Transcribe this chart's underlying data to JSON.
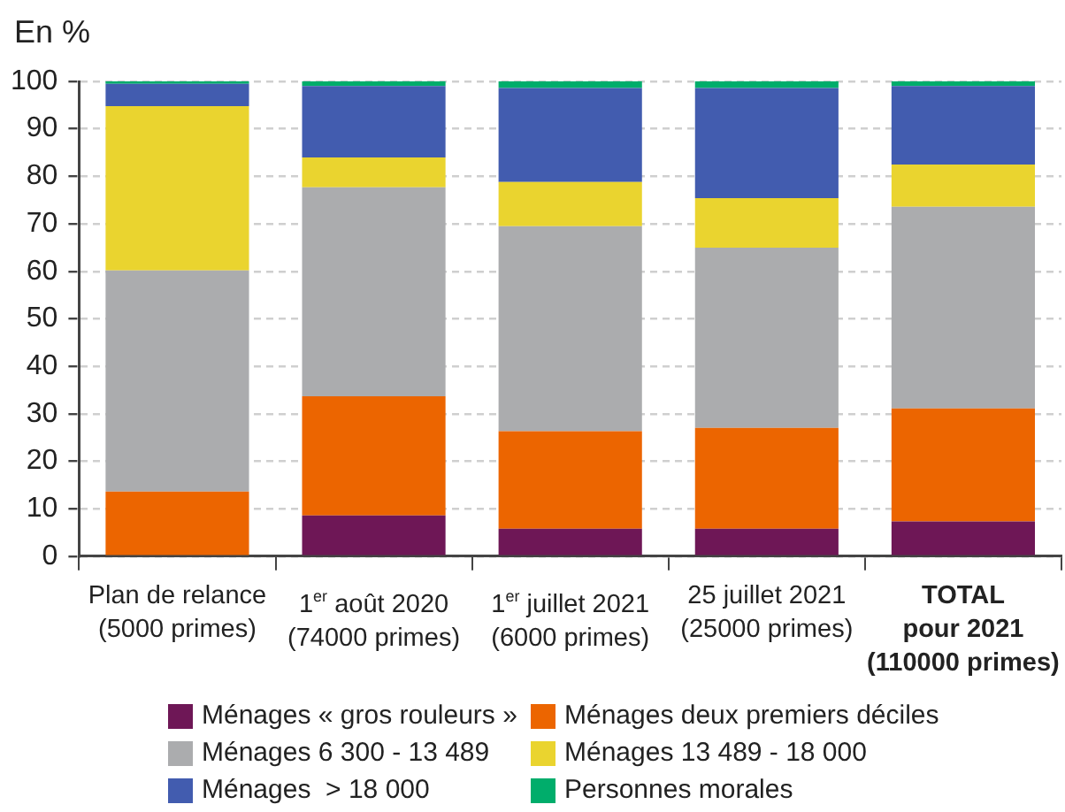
{
  "chart_data": {
    "type": "bar",
    "stacked": true,
    "ylabel": "En %",
    "categories": [
      "Plan de relance\n(5000 primes)",
      "1$^{er}$ août 2020\n(74000 primes)",
      "1$^{er}$ juillet 2021\n(6000 primes)",
      "25 juillet 2021\n(25000 primes)",
      "TOTAL\npour 2021\n(110000 primes)"
    ],
    "series": [
      {
        "name": "Ménages « gros rouleurs »",
        "color": "#6e1756",
        "values": [
          null,
          8.6,
          5.8,
          5.8,
          7.3
        ]
      },
      {
        "name": "Ménages deux premiers déciles",
        "color": "#ec6500",
        "values": [
          13.6,
          25.1,
          20.5,
          21.2,
          23.8
        ]
      },
      {
        "name": "Ménages 6 300 - 13 489",
        "color": "#abacae",
        "values": [
          46.6,
          44,
          43.2,
          38,
          42.5
        ]
      },
      {
        "name": "Ménages 13 489 - 18 000",
        "color": "#ead42f",
        "values": [
          34.6,
          6.3,
          9.3,
          10.4,
          8.9
        ]
      },
      {
        "name": "Ménages  > 18 000",
        "color": "#425caf",
        "values": [
          4.7,
          15,
          19.8,
          23.2,
          16.5
        ]
      },
      {
        "name": "Personnes morales",
        "color": "#00ad6b",
        "values": [
          0.5,
          1,
          1.4,
          1.4,
          1
        ]
      }
    ],
    "ylim": [
      0,
      100
    ],
    "yticks": [
      0,
      10,
      20,
      30,
      40,
      50,
      60,
      70,
      80,
      90,
      100
    ],
    "grid": "y",
    "legend": "bottom"
  }
}
